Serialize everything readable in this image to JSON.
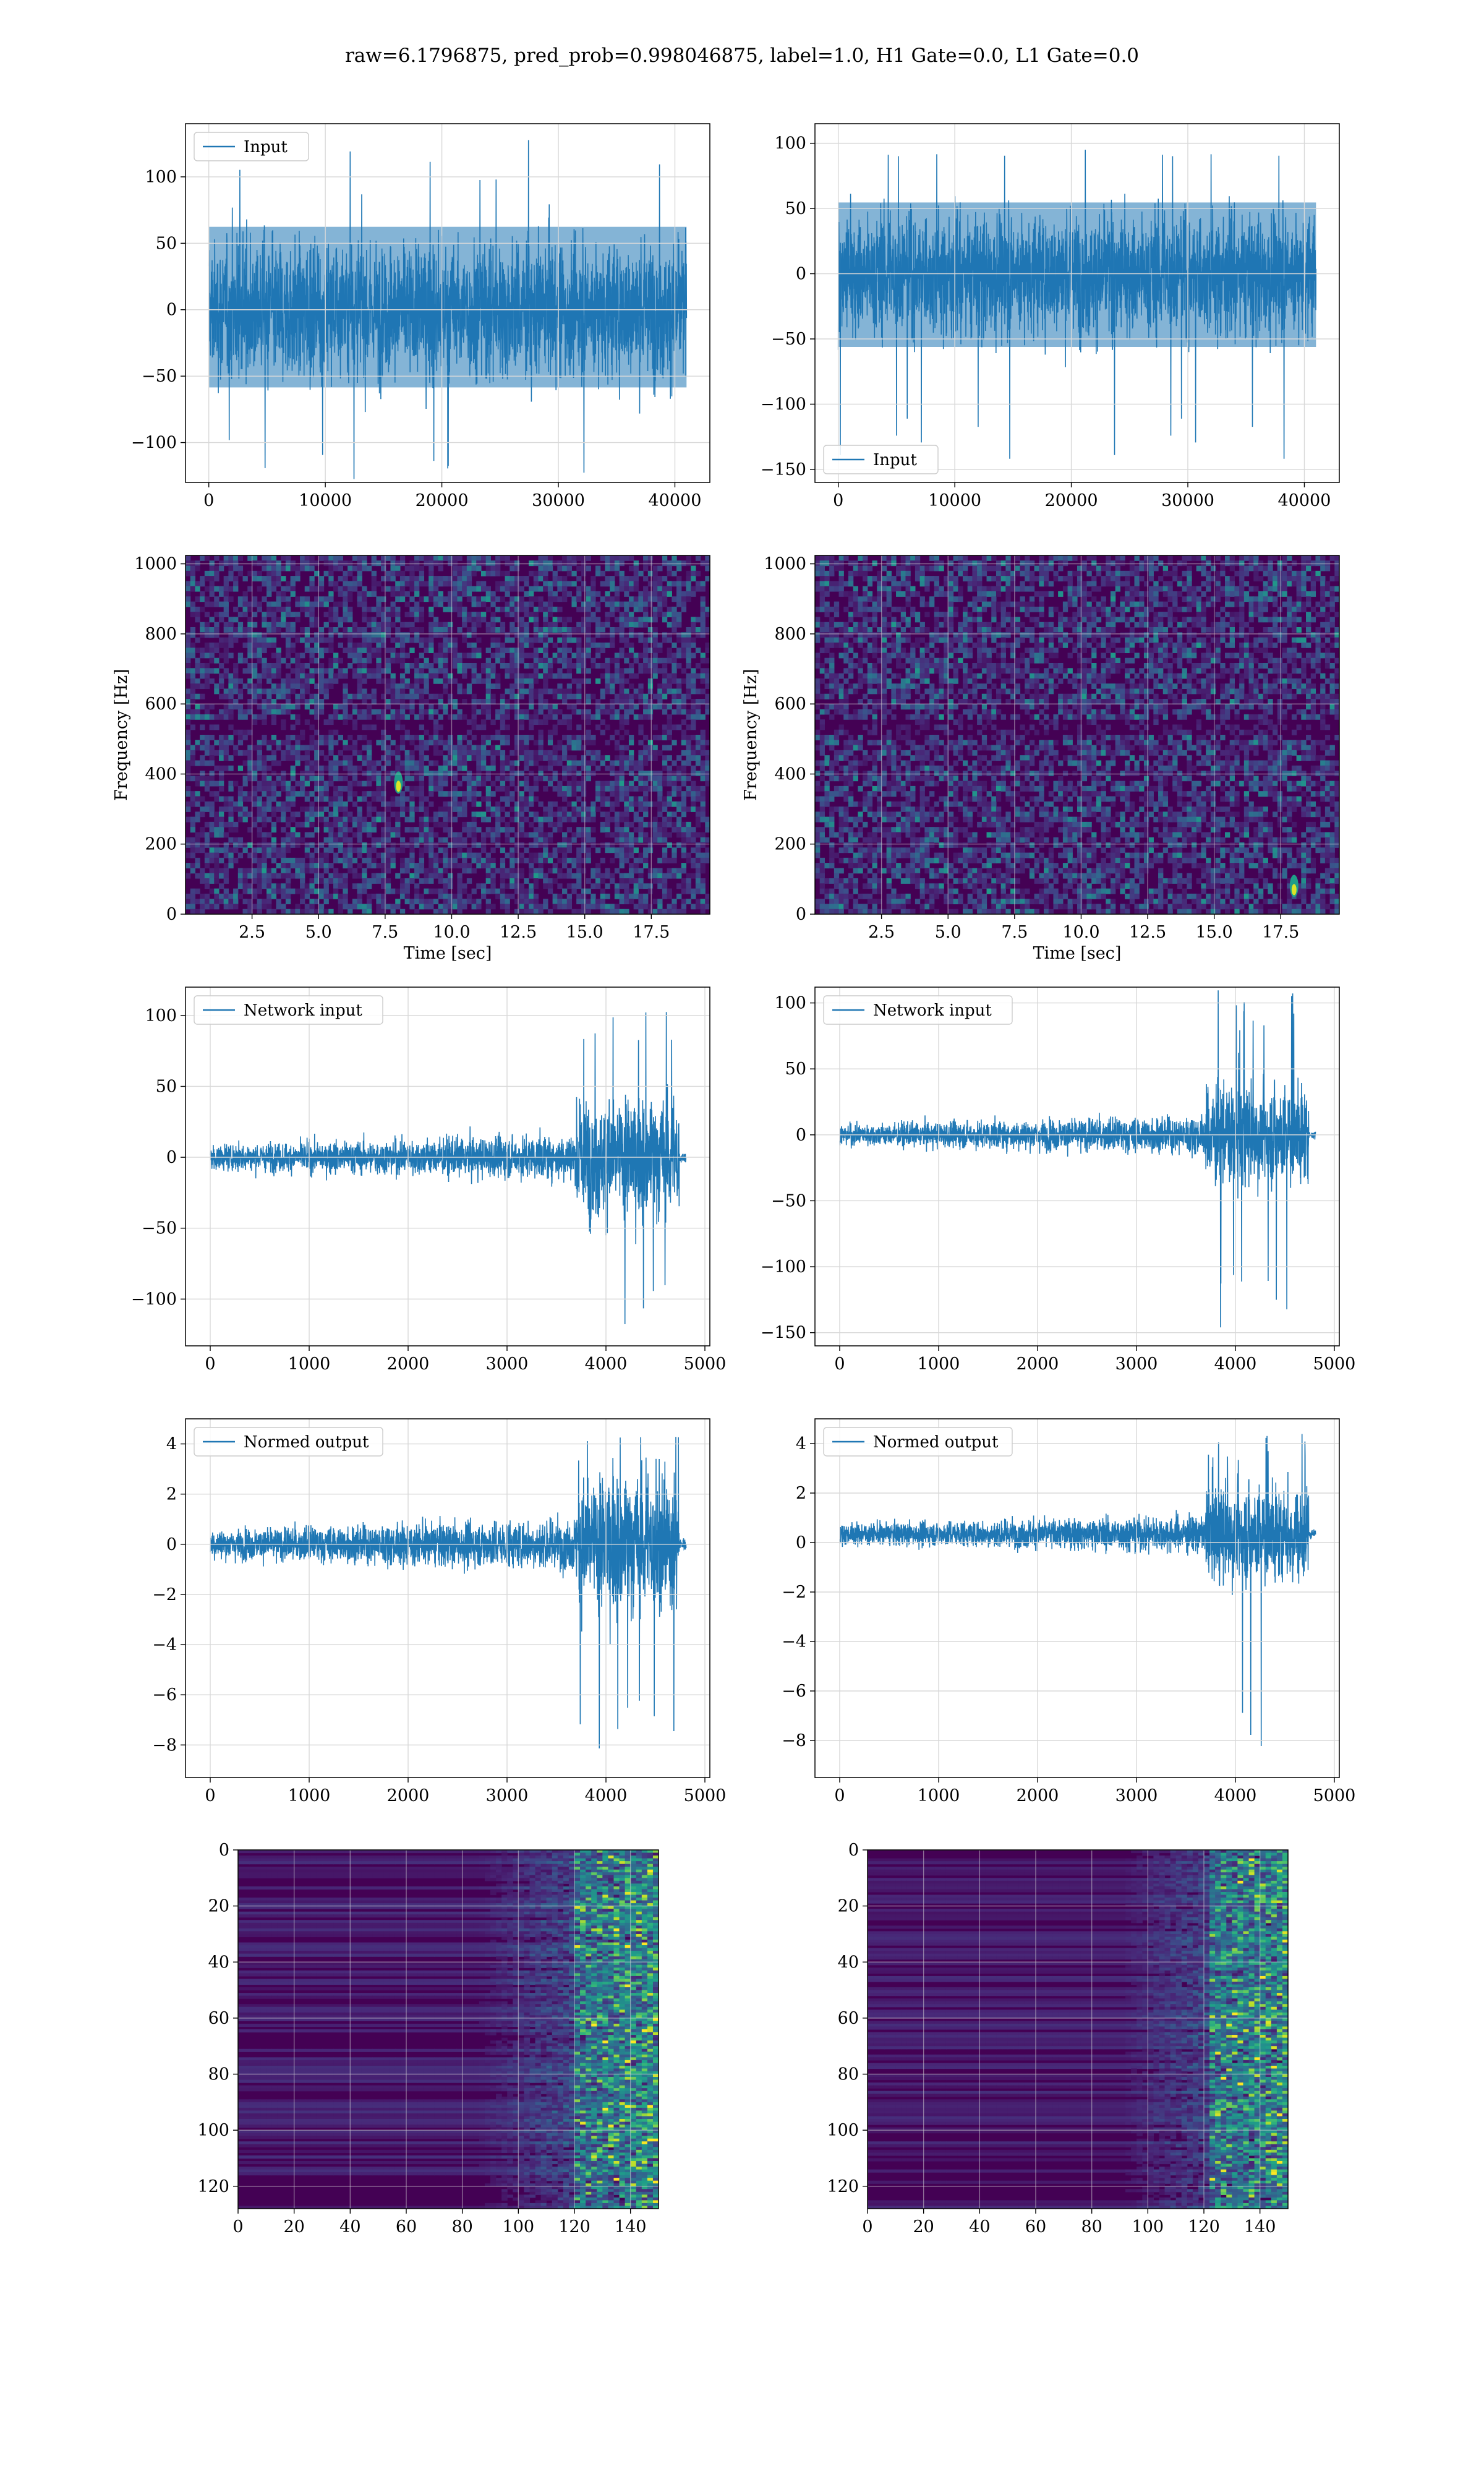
{
  "suptitle": "raw=6.1796875, pred_prob=0.998046875, label=1.0, H1 Gate=0.0, L1 Gate=0.0",
  "colors": {
    "line": "#1f77b4",
    "grid": "#d8d8d8",
    "viridis_dark": "#440154",
    "viridis_mid": "#3b528b",
    "viridis_teal": "#21918c",
    "viridis_green": "#5ec962",
    "viridis_yellow": "#fde725"
  },
  "chart_data": [
    {
      "id": "h1-input",
      "type": "line",
      "legend": "Input",
      "legend_loc": "upper-left",
      "xlim": [
        -2000,
        43000
      ],
      "ylim": [
        -130,
        140
      ],
      "xticks": [
        "0",
        "10000",
        "20000",
        "30000",
        "40000"
      ],
      "xtick_values": [
        0,
        10000,
        20000,
        30000,
        40000
      ],
      "yticks": [
        "100",
        "50",
        "0",
        "−50",
        "−100"
      ],
      "ytick_values": [
        100,
        50,
        0,
        -50,
        -100
      ],
      "x_range": [
        0,
        41000
      ],
      "y_envelope": [
        -75,
        80
      ],
      "y_peaks": [
        -128,
        130
      ],
      "xlabel": "",
      "ylabel": ""
    },
    {
      "id": "l1-input",
      "type": "line",
      "legend": "Input",
      "legend_loc": "lower-left",
      "xlim": [
        -2000,
        43000
      ],
      "ylim": [
        -160,
        115
      ],
      "xticks": [
        "0",
        "10000",
        "20000",
        "30000",
        "40000"
      ],
      "xtick_values": [
        0,
        10000,
        20000,
        30000,
        40000
      ],
      "yticks": [
        "100",
        "50",
        "0",
        "−50",
        "−100",
        "−150"
      ],
      "ytick_values": [
        100,
        50,
        0,
        -50,
        -100,
        -150
      ],
      "x_range": [
        0,
        41000
      ],
      "y_envelope": [
        -72,
        70
      ],
      "y_peaks": [
        -148,
        113
      ],
      "xlabel": "",
      "ylabel": ""
    },
    {
      "id": "h1-spectrogram",
      "type": "heatmap",
      "xlabel": "Time [sec]",
      "ylabel": "Frequency [Hz]",
      "xlim": [
        0,
        19.7
      ],
      "ylim": [
        0,
        1024
      ],
      "xticks": [
        "2.5",
        "5.0",
        "7.5",
        "10.0",
        "12.5",
        "15.0",
        "17.5"
      ],
      "xtick_values": [
        2.5,
        5,
        7.5,
        10,
        12.5,
        15,
        17.5
      ],
      "yticks": [
        "0",
        "200",
        "400",
        "600",
        "800",
        "1000"
      ],
      "ytick_values": [
        0,
        200,
        400,
        600,
        800,
        1000
      ],
      "bright_spots": [
        {
          "t": 8.0,
          "f": 365
        }
      ]
    },
    {
      "id": "l1-spectrogram",
      "type": "heatmap",
      "xlabel": "Time [sec]",
      "ylabel": "Frequency [Hz]",
      "xlim": [
        0,
        19.7
      ],
      "ylim": [
        0,
        1024
      ],
      "xticks": [
        "2.5",
        "5.0",
        "7.5",
        "10.0",
        "12.5",
        "15.0",
        "17.5"
      ],
      "xtick_values": [
        2.5,
        5,
        7.5,
        10,
        12.5,
        15,
        17.5
      ],
      "yticks": [
        "0",
        "200",
        "400",
        "600",
        "800",
        "1000"
      ],
      "ytick_values": [
        0,
        200,
        400,
        600,
        800,
        1000
      ],
      "bright_spots": [
        {
          "t": 18.0,
          "f": 70
        }
      ]
    },
    {
      "id": "h1-network-input",
      "type": "line",
      "legend": "Network input",
      "legend_loc": "upper-left",
      "xlim": [
        -250,
        5050
      ],
      "ylim": [
        -133,
        120
      ],
      "xticks": [
        "0",
        "1000",
        "2000",
        "3000",
        "4000",
        "5000"
      ],
      "xtick_values": [
        0,
        1000,
        2000,
        3000,
        4000,
        5000
      ],
      "yticks": [
        "100",
        "50",
        "0",
        "−50",
        "−100"
      ],
      "ytick_values": [
        100,
        50,
        0,
        -50,
        -100
      ],
      "x_range": [
        0,
        4810
      ],
      "burst_start": 3700,
      "burst_end": 4740,
      "y_envelope_pre": [
        -20,
        20
      ],
      "y_peaks": [
        -123,
        108
      ],
      "xlabel": "",
      "ylabel": ""
    },
    {
      "id": "l1-network-input",
      "type": "line",
      "legend": "Network input",
      "legend_loc": "upper-left",
      "xlim": [
        -250,
        5050
      ],
      "ylim": [
        -160,
        112
      ],
      "xticks": [
        "0",
        "1000",
        "2000",
        "3000",
        "4000",
        "5000"
      ],
      "xtick_values": [
        0,
        1000,
        2000,
        3000,
        4000,
        5000
      ],
      "yticks": [
        "100",
        "50",
        "0",
        "−50",
        "−100",
        "−150"
      ],
      "ytick_values": [
        100,
        50,
        0,
        -50,
        -100,
        -150
      ],
      "x_range": [
        0,
        4810
      ],
      "burst_start": 3700,
      "burst_end": 4740,
      "y_envelope_pre": [
        -18,
        18
      ],
      "y_peaks": [
        -148,
        112
      ],
      "xlabel": "",
      "ylabel": ""
    },
    {
      "id": "h1-normed-output",
      "type": "line",
      "legend": "Normed output",
      "legend_loc": "upper-left",
      "xlim": [
        -250,
        5050
      ],
      "ylim": [
        -9.3,
        5
      ],
      "xticks": [
        "0",
        "1000",
        "2000",
        "3000",
        "4000",
        "5000"
      ],
      "xtick_values": [
        0,
        1000,
        2000,
        3000,
        4000,
        5000
      ],
      "yticks": [
        "4",
        "2",
        "0",
        "−2",
        "−4",
        "−6",
        "−8"
      ],
      "ytick_values": [
        4,
        2,
        0,
        -2,
        -4,
        -6,
        -8
      ],
      "x_range": [
        0,
        4810
      ],
      "burst_start": 3700,
      "burst_end": 4740,
      "y_envelope_pre": [
        -1.3,
        1.3
      ],
      "y_peaks": [
        -8.5,
        4.5
      ],
      "xlabel": "",
      "ylabel": ""
    },
    {
      "id": "l1-normed-output",
      "type": "line",
      "legend": "Normed output",
      "legend_loc": "upper-left",
      "xlim": [
        -250,
        5050
      ],
      "ylim": [
        -9.5,
        5
      ],
      "xticks": [
        "0",
        "1000",
        "2000",
        "3000",
        "4000",
        "5000"
      ],
      "xtick_values": [
        0,
        1000,
        2000,
        3000,
        4000,
        5000
      ],
      "yticks": [
        "4",
        "2",
        "0",
        "−2",
        "−4",
        "−6",
        "−8"
      ],
      "ytick_values": [
        4,
        2,
        0,
        -2,
        -4,
        -6,
        -8
      ],
      "x_range": [
        0,
        4810
      ],
      "burst_start": 3700,
      "burst_end": 4740,
      "y_envelope_pre": [
        -0.6,
        1.3
      ],
      "y_peaks": [
        -9.2,
        4.5
      ],
      "xlabel": "",
      "ylabel": ""
    },
    {
      "id": "h1-network-image",
      "type": "heatmap",
      "xlim": [
        0,
        150
      ],
      "ylim": [
        128,
        0
      ],
      "xticks": [
        "0",
        "20",
        "40",
        "60",
        "80",
        "100",
        "120",
        "140"
      ],
      "xtick_values": [
        0,
        20,
        40,
        60,
        80,
        100,
        120,
        140
      ],
      "yticks": [
        "0",
        "20",
        "40",
        "60",
        "80",
        "100",
        "120"
      ],
      "ytick_values": [
        0,
        20,
        40,
        60,
        80,
        100,
        120
      ],
      "activity_start": 85,
      "hot_start": 118,
      "xlabel": "",
      "ylabel": ""
    },
    {
      "id": "l1-network-image",
      "type": "heatmap",
      "xlim": [
        0,
        150
      ],
      "ylim": [
        128,
        0
      ],
      "xticks": [
        "0",
        "20",
        "40",
        "60",
        "80",
        "100",
        "120",
        "140"
      ],
      "xtick_values": [
        0,
        20,
        40,
        60,
        80,
        100,
        120,
        140
      ],
      "yticks": [
        "0",
        "20",
        "40",
        "60",
        "80",
        "100",
        "120"
      ],
      "ytick_values": [
        0,
        20,
        40,
        60,
        80,
        100,
        120
      ],
      "activity_start": 90,
      "hot_start": 120,
      "xlabel": "",
      "ylabel": ""
    }
  ]
}
